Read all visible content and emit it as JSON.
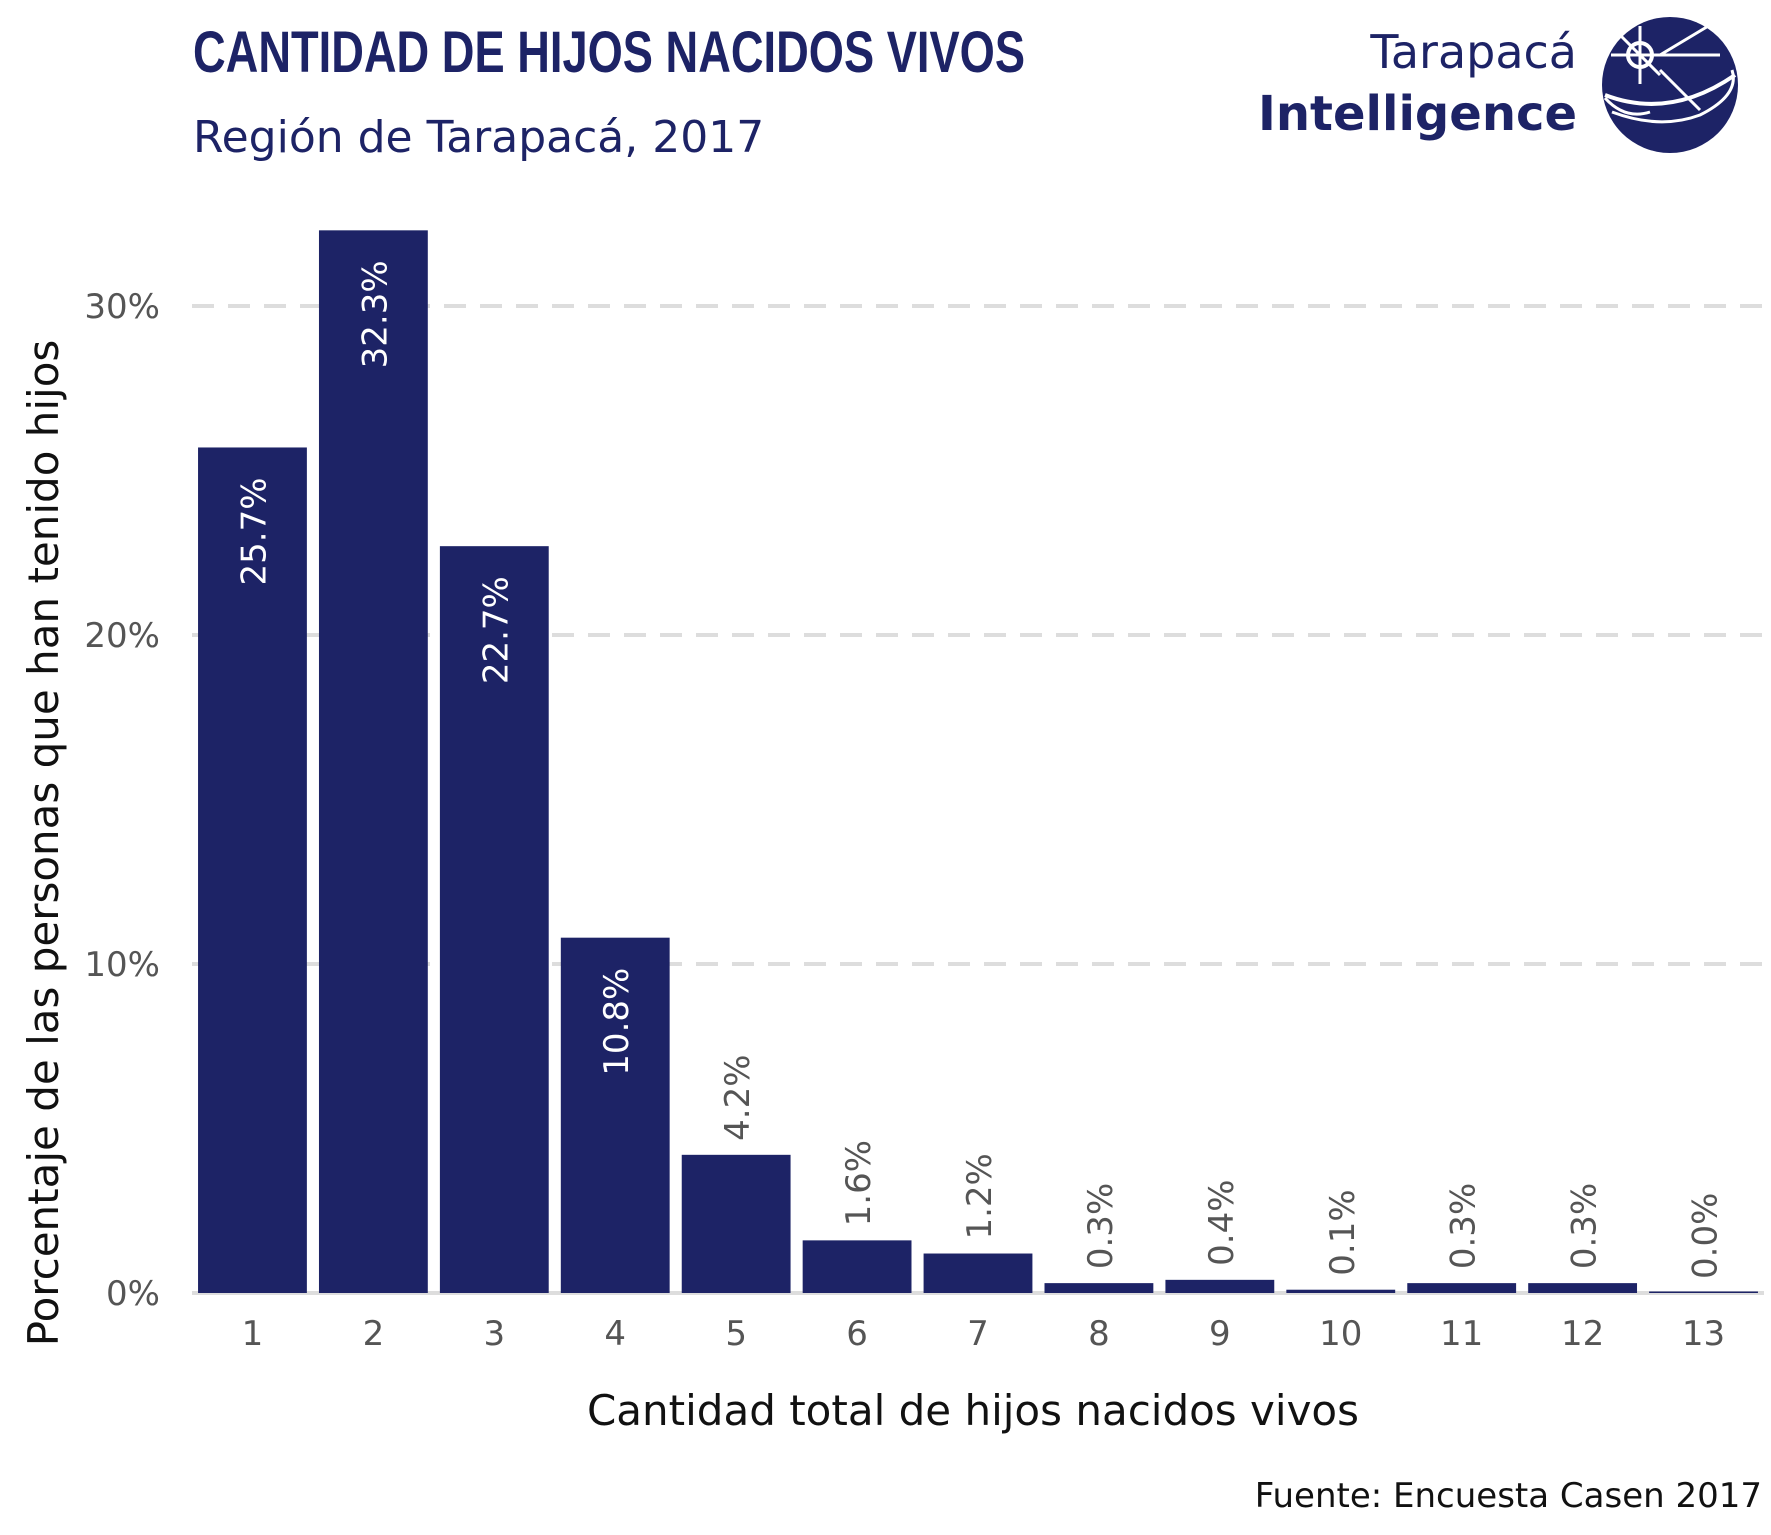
{
  "header": {
    "title": "CANTIDAD DE HIJOS NACIDOS VIVOS",
    "subtitle": "Región de Tarapacá, 2017"
  },
  "logo": {
    "line1": "Tarapacá",
    "line2": "Intelligence",
    "icon": "globe-logo-icon"
  },
  "footer": {
    "source": "Fuente: Encuesta Casen 2017"
  },
  "colors": {
    "bar": "#1d2366",
    "title": "#1d2366",
    "grid": "#dddddd",
    "label_inside": "#ffffff",
    "label_outside": "#555555",
    "tick": "#555555",
    "axis_title": "#111111"
  },
  "chart_data": {
    "type": "bar",
    "title": "CANTIDAD DE HIJOS NACIDOS VIVOS",
    "subtitle": "Región de Tarapacá, 2017",
    "xlabel": "Cantidad total de hijos nacidos vivos",
    "ylabel": "Porcentaje de las personas que han tenido hijos",
    "categories": [
      "1",
      "2",
      "3",
      "4",
      "5",
      "6",
      "7",
      "8",
      "9",
      "10",
      "11",
      "12",
      "13"
    ],
    "values": [
      25.7,
      32.3,
      22.7,
      10.8,
      4.2,
      1.6,
      1.2,
      0.3,
      0.4,
      0.1,
      0.3,
      0.3,
      0.0
    ],
    "labels": [
      "25.7%",
      "32.3%",
      "22.7%",
      "10.8%",
      "4.2%",
      "1.6%",
      "1.2%",
      "0.3%",
      "0.4%",
      "0.1%",
      "0.3%",
      "0.3%",
      "0.0%"
    ],
    "yticks": [
      0,
      10,
      20,
      30
    ],
    "ytick_labels": [
      "0%",
      "10%",
      "20%",
      "30%"
    ],
    "ylim": [
      0,
      33
    ],
    "grid": true,
    "legend": "none",
    "source": "Fuente: Encuesta Casen 2017"
  }
}
